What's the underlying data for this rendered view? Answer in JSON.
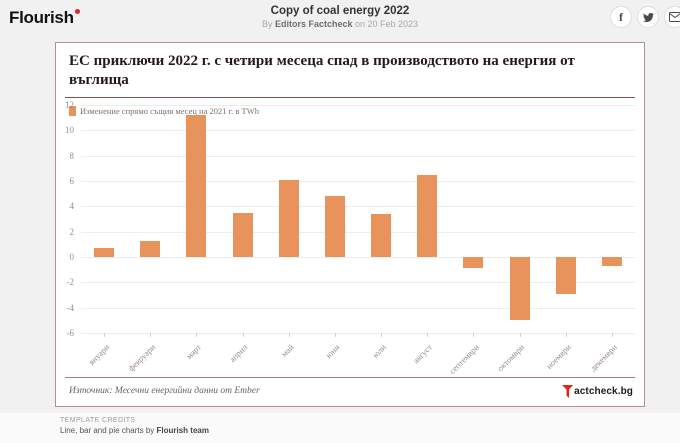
{
  "header": {
    "logo": "Flourish",
    "title": "Copy of coal energy 2022",
    "byline_prefix": "By ",
    "byline_author": "Editors Factcheck",
    "byline_suffix": " on 20 Feb 2023"
  },
  "chart_card": {
    "title": "ЕС приключи 2022 г. с четири месеца спад в производството на енергия от въглища",
    "legend_label": "Изменение спрямо същия месец на 2021 г. в TWh",
    "source": "Източник: Месечни енергийни данни от Ember",
    "factcheck_logo_text": "actcheck.bg"
  },
  "chart_data": {
    "type": "bar",
    "title": "ЕС приключи 2022 г. с четири месеца спад в производството на енергия от въглища",
    "series_name": "Изменение спрямо същия месец на 2021 г. в TWh",
    "categories": [
      "януари",
      "февруари",
      "март",
      "април",
      "май",
      "юни",
      "юли",
      "август",
      "септември",
      "октомври",
      "ноември",
      "декември"
    ],
    "values": [
      0.7,
      1.3,
      11.2,
      3.5,
      6.1,
      4.8,
      3.4,
      6.5,
      -0.9,
      -5.0,
      -2.9,
      -0.7
    ],
    "ylabel": "TWh",
    "xlabel": "",
    "ylim": [
      -6,
      12
    ],
    "yticks": [
      12,
      10,
      8,
      6,
      4,
      2,
      0,
      -2,
      -4,
      -6
    ],
    "grid": true,
    "legend_position": "top",
    "bar_color": "#e8935c"
  },
  "colors": {
    "bar": "#e8935c",
    "card_border": "#b48f8f",
    "divider": "#8a4f4f",
    "factcheck_red": "#e2231a"
  },
  "template_credits": {
    "heading": "TEMPLATE CREDITS",
    "line_prefix": "Line, bar and pie charts by ",
    "line_bold": "Flourish team"
  }
}
